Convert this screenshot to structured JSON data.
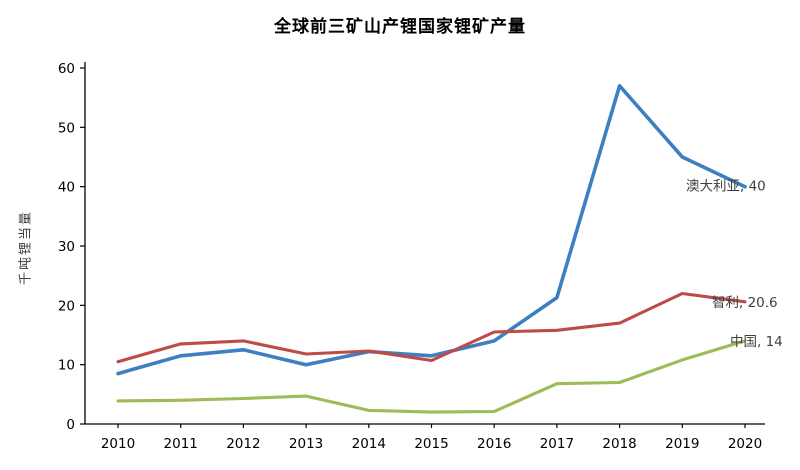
{
  "chart_data": {
    "type": "line",
    "title": "全球前三矿山产锂国家锂矿产量",
    "xlabel": "",
    "ylabel": "千吨锂当量",
    "x": [
      2010,
      2011,
      2012,
      2013,
      2014,
      2015,
      2016,
      2017,
      2018,
      2019,
      2020
    ],
    "ylim": [
      0,
      60
    ],
    "yticks": [
      0,
      10,
      20,
      30,
      40,
      50,
      60
    ],
    "grid": false,
    "legend_position": "end-labels-right",
    "axis_color": "#000000",
    "tick_label_color": "#000000",
    "end_label_color": "#3f3f3f",
    "series": [
      {
        "name": "澳大利亚",
        "color": "#3e7fc1",
        "values": [
          8.5,
          11.5,
          12.5,
          10,
          12.2,
          11.5,
          14,
          21.3,
          57,
          45,
          40
        ],
        "end_label": "澳大利亚, 40",
        "label_dx": -59,
        "label_dy": 4
      },
      {
        "name": "智利",
        "color": "#be4b48",
        "values": [
          10.5,
          13.5,
          14,
          11.8,
          12.3,
          10.7,
          15.5,
          15.8,
          17,
          22,
          20.6
        ],
        "end_label": "智利, 20.6",
        "label_dx": -33,
        "label_dy": 5
      },
      {
        "name": "中国",
        "color": "#9dbb56",
        "values": [
          3.9,
          4,
          4.3,
          4.7,
          2.3,
          2,
          2.1,
          6.8,
          7,
          10.8,
          14
        ],
        "end_label": "中国, 14",
        "label_dx": -15,
        "label_dy": 5
      }
    ]
  }
}
